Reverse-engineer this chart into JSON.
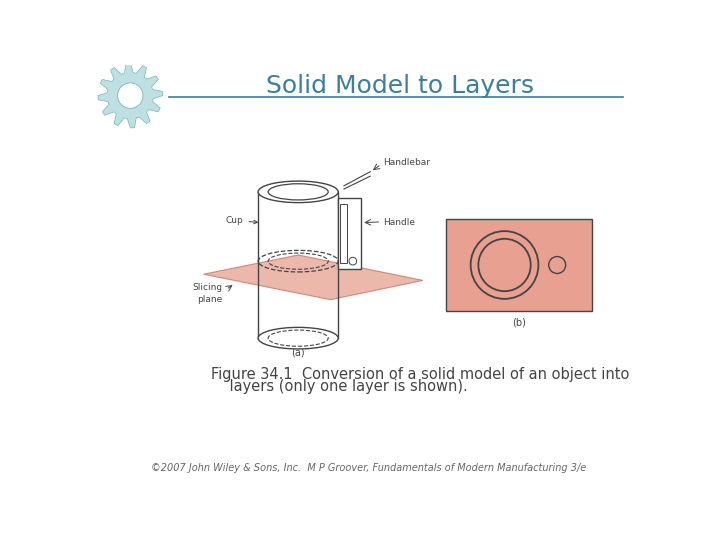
{
  "title": "Solid Model to Layers",
  "title_color": "#3B7EA0",
  "title_fontsize": 18,
  "bg_color": "#FFFFFF",
  "separator_color": "#3B7EA0",
  "caption_line1": "Figure 34.1  Conversion of a solid model of an object into",
  "caption_line2": "    layers (only one layer is shown).",
  "caption_fontsize": 10.5,
  "footer_text": "©2007 John Wiley & Sons, Inc.  M P Groover, Fundamentals of Modern Manufacturing 3/e",
  "footer_fontsize": 7,
  "pink_color": "#E8A090",
  "dark_color": "#444444",
  "gear_color_light": "#B8DDE0",
  "gear_color_dark": "#6AACB8",
  "label_fontsize": 6.5
}
